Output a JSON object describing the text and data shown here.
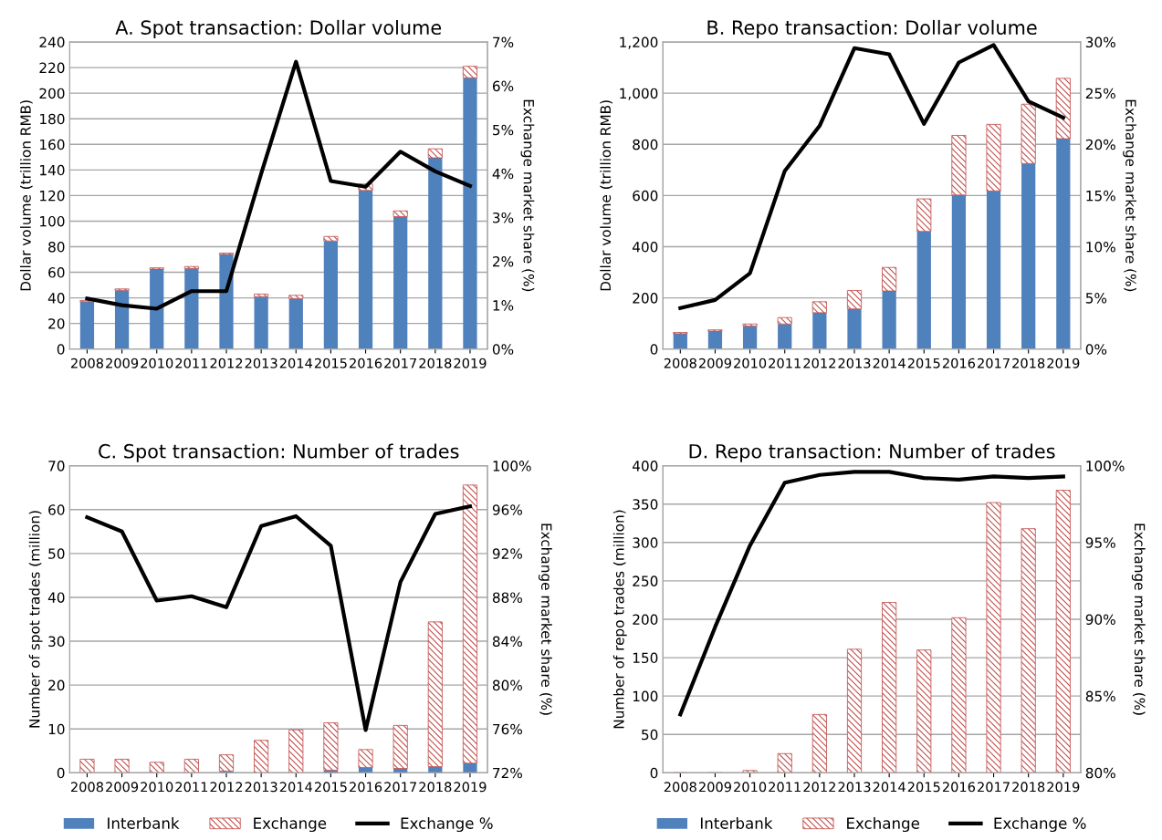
{
  "chart_data": [
    {
      "type": "bar",
      "title": "A. Spot transaction: Dollar volume",
      "ylabel": "Dollar volume (trillion RMB)",
      "y2label": "Exchange market share (%)",
      "stacked": true,
      "grid": "y",
      "legend": "bottom",
      "categories": [
        "2008",
        "2009",
        "2010",
        "2011",
        "2012",
        "2013",
        "2014",
        "2015",
        "2016",
        "2017",
        "2018",
        "2019"
      ],
      "ylim": [
        0,
        240
      ],
      "yticks": [
        0,
        20,
        40,
        60,
        80,
        100,
        120,
        140,
        160,
        180,
        200,
        220,
        240
      ],
      "y2lim": [
        0,
        7
      ],
      "y2ticks": [
        {
          "value": 0,
          "label": "0%"
        },
        {
          "value": 1,
          "label": "1%"
        },
        {
          "value": 2,
          "label": "2%"
        },
        {
          "value": 3,
          "label": "3%"
        },
        {
          "value": 4,
          "label": "4%"
        },
        {
          "value": 5,
          "label": "5%"
        },
        {
          "value": 6,
          "label": "6%"
        },
        {
          "value": 7,
          "label": "7%"
        }
      ],
      "series": [
        {
          "name": "Interbank",
          "color": "#4f81bd",
          "values": [
            37,
            46,
            62.5,
            63,
            74,
            41,
            39.5,
            84.5,
            124,
            103.5,
            149.5,
            212
          ]
        },
        {
          "name": "Exchange",
          "color": "#c0504d",
          "values": [
            1,
            1,
            1,
            1.5,
            1,
            2,
            2.5,
            3.5,
            5,
            4.5,
            7,
            9
          ]
        },
        {
          "name": "Exchange %",
          "type": "line",
          "axis": "y2",
          "color": "#000000",
          "values": [
            1.15,
            1.0,
            0.92,
            1.32,
            1.32,
            4.0,
            6.55,
            3.83,
            3.7,
            4.5,
            4.05,
            3.72
          ]
        }
      ]
    },
    {
      "type": "bar",
      "title": "B. Repo transaction: Dollar volume",
      "ylabel": "Dollar volume (trillion RMB)",
      "y2label": "Exchange market share (%)",
      "stacked": true,
      "grid": "y",
      "legend": "bottom",
      "categories": [
        "2008",
        "2009",
        "2010",
        "2011",
        "2012",
        "2013",
        "2014",
        "2015",
        "2016",
        "2017",
        "2018",
        "2019"
      ],
      "ylim": [
        0,
        1200
      ],
      "yticks": [
        0,
        200,
        400,
        600,
        800,
        {
          "value": 1000,
          "label": "1,000"
        },
        {
          "value": 1200,
          "label": "1,200"
        }
      ],
      "y2lim": [
        0,
        30
      ],
      "y2ticks": [
        {
          "value": 0,
          "label": "0%"
        },
        {
          "value": 5,
          "label": "5%"
        },
        {
          "value": 10,
          "label": "10%"
        },
        {
          "value": 15,
          "label": "15%"
        },
        {
          "value": 20,
          "label": "20%"
        },
        {
          "value": 25,
          "label": "25%"
        },
        {
          "value": 30,
          "label": "30%"
        }
      ],
      "series": [
        {
          "name": "Interbank",
          "color": "#4f81bd",
          "values": [
            60,
            70,
            90,
            98,
            142,
            157,
            227,
            460,
            602,
            618,
            725,
            822
          ]
        },
        {
          "name": "Exchange",
          "color": "#c0504d",
          "values": [
            5,
            5,
            8,
            25,
            43,
            72,
            92,
            127,
            233,
            260,
            232,
            236
          ]
        },
        {
          "name": "Exchange %",
          "type": "line",
          "axis": "y2",
          "color": "#000000",
          "values": [
            4.0,
            4.8,
            7.4,
            17.4,
            21.8,
            29.4,
            28.8,
            22.0,
            28.0,
            29.7,
            24.2,
            22.6
          ]
        }
      ]
    },
    {
      "type": "bar",
      "title": "C. Spot transaction: Number of trades",
      "ylabel": "Number of spot trades (million)",
      "y2label": "Exchange market share (%)",
      "stacked": true,
      "grid": "y",
      "legend": "bottom",
      "categories": [
        "2008",
        "2009",
        "2010",
        "2011",
        "2012",
        "2013",
        "2014",
        "2015",
        "2016",
        "2017",
        "2018",
        "2019"
      ],
      "ylim": [
        0,
        70
      ],
      "yticks": [
        0,
        10,
        20,
        30,
        40,
        50,
        60,
        70
      ],
      "y2lim": [
        72,
        100
      ],
      "y2ticks": [
        {
          "value": 72,
          "label": "72%"
        },
        {
          "value": 76,
          "label": "76%"
        },
        {
          "value": 80,
          "label": "80%"
        },
        {
          "value": 84,
          "label": "84%"
        },
        {
          "value": 88,
          "label": "88%"
        },
        {
          "value": 92,
          "label": "92%"
        },
        {
          "value": 96,
          "label": "96%"
        },
        {
          "value": 100,
          "label": "100%"
        }
      ],
      "series": [
        {
          "name": "Interbank",
          "color": "#4f81bd",
          "values": [
            0,
            0,
            0,
            0,
            0.4,
            0,
            0,
            0.6,
            1.2,
            1.0,
            1.4,
            2.2
          ]
        },
        {
          "name": "Exchange",
          "color": "#c0504d",
          "values": [
            3.1,
            3.1,
            2.4,
            3.1,
            3.7,
            7.4,
            9.8,
            10.8,
            4.1,
            9.8,
            33.0,
            63.4
          ]
        },
        {
          "name": "Exchange %",
          "type": "line",
          "axis": "y2",
          "color": "#000000",
          "values": [
            95.3,
            94.0,
            87.7,
            88.1,
            87.1,
            94.5,
            95.4,
            92.7,
            75.9,
            89.4,
            95.6,
            96.3
          ]
        }
      ]
    },
    {
      "type": "bar",
      "title": "D. Repo transaction: Number of trades",
      "ylabel": "Number of repo trades (million)",
      "y2label": "Exchange market share (%)",
      "stacked": true,
      "grid": "y",
      "legend": "bottom",
      "categories": [
        "2008",
        "2009",
        "2010",
        "2011",
        "2012",
        "2013",
        "2014",
        "2015",
        "2016",
        "2017",
        "2018",
        "2019"
      ],
      "ylim": [
        0,
        400
      ],
      "yticks": [
        0,
        50,
        100,
        150,
        200,
        250,
        300,
        350,
        400
      ],
      "y2lim": [
        80,
        100
      ],
      "y2ticks": [
        {
          "value": 80,
          "label": "80%"
        },
        {
          "value": 85,
          "label": "85%"
        },
        {
          "value": 90,
          "label": "90%"
        },
        {
          "value": 95,
          "label": "95%"
        },
        {
          "value": 100,
          "label": "100%"
        }
      ],
      "series": [
        {
          "name": "Interbank",
          "color": "#4f81bd",
          "values": [
            null,
            null,
            null,
            null,
            null,
            null,
            null,
            null,
            null,
            null,
            null,
            null
          ]
        },
        {
          "name": "Exchange",
          "color": "#c0504d",
          "values": [
            0,
            0,
            3,
            25,
            76,
            161,
            222,
            160,
            202,
            352,
            318,
            368
          ]
        },
        {
          "name": "Exchange %",
          "type": "line",
          "axis": "y2",
          "color": "#000000",
          "values": [
            83.8,
            89.5,
            94.8,
            98.9,
            99.4,
            99.6,
            99.6,
            99.2,
            99.1,
            99.3,
            99.2,
            99.3
          ]
        }
      ]
    }
  ]
}
